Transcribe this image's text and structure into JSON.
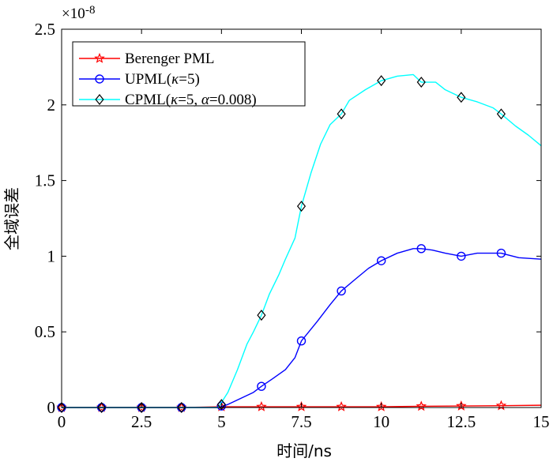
{
  "chart_data": {
    "type": "line",
    "title": "",
    "xlabel": "时间/ns",
    "ylabel": "全域误差",
    "x_multiplier_label": "×10",
    "y_exponent_label": "-8",
    "xlim": [
      0,
      15
    ],
    "ylim": [
      0,
      2.5
    ],
    "xticks": [
      0,
      2.5,
      5,
      7.5,
      10,
      12.5,
      15
    ],
    "xtick_labels": [
      "0",
      "2.5",
      "5",
      "7.5",
      "10",
      "12.5",
      "15"
    ],
    "yticks": [
      0,
      0.5,
      1,
      1.5,
      2,
      2.5
    ],
    "ytick_labels": [
      "0",
      "0.5",
      "1",
      "1.5",
      "2",
      "2.5"
    ],
    "legend_position": "top-left",
    "series": [
      {
        "name": "Berenger PML",
        "legend_parts": [
          {
            "t": "Berenger PML",
            "i": false
          }
        ],
        "color": "#ff0000",
        "marker": "star",
        "x": [
          0,
          1.25,
          2.5,
          3.75,
          5,
          6.25,
          7.5,
          8.75,
          10,
          11.25,
          12.5,
          13.75,
          15
        ],
        "y": [
          0,
          0,
          0,
          0,
          0.005,
          0.005,
          0.005,
          0.005,
          0.005,
          0.008,
          0.01,
          0.012,
          0.015
        ],
        "marker_x": [
          0,
          1.25,
          2.5,
          3.75,
          5,
          6.25,
          7.5,
          8.75,
          10,
          11.25,
          12.5,
          13.75
        ],
        "marker_y": [
          0,
          0,
          0,
          0,
          0.005,
          0.005,
          0.005,
          0.005,
          0.005,
          0.008,
          0.01,
          0.012
        ]
      },
      {
        "name": "UPML(κ=5)",
        "legend_parts": [
          {
            "t": "UPML(",
            "i": false
          },
          {
            "t": "κ",
            "i": true
          },
          {
            "t": "=5)",
            "i": false
          }
        ],
        "color": "#0000ff",
        "marker": "circle",
        "x": [
          0,
          4.9,
          5.2,
          5.6,
          6.0,
          6.25,
          6.6,
          7.0,
          7.3,
          7.5,
          8.0,
          8.4,
          8.75,
          9.2,
          9.6,
          10.0,
          10.5,
          11.0,
          11.25,
          11.6,
          12.0,
          12.5,
          13.0,
          13.75,
          14.3,
          15.0
        ],
        "y": [
          0,
          0,
          0.02,
          0.06,
          0.1,
          0.14,
          0.19,
          0.25,
          0.33,
          0.44,
          0.57,
          0.68,
          0.77,
          0.85,
          0.92,
          0.97,
          1.02,
          1.05,
          1.05,
          1.04,
          1.02,
          1.0,
          1.02,
          1.02,
          0.99,
          0.98
        ],
        "marker_x": [
          0,
          1.25,
          2.5,
          3.75,
          5,
          6.25,
          7.5,
          8.75,
          10,
          11.25,
          12.5,
          13.75
        ],
        "marker_y": [
          0,
          0,
          0,
          0,
          0.01,
          0.14,
          0.44,
          0.77,
          0.97,
          1.05,
          1.0,
          1.02
        ]
      },
      {
        "name": "CPML(κ=5, α=0.008)",
        "legend_parts": [
          {
            "t": "CPML(",
            "i": false
          },
          {
            "t": "κ",
            "i": true
          },
          {
            "t": "=5, ",
            "i": false
          },
          {
            "t": "α",
            "i": true
          },
          {
            "t": "=0.008)",
            "i": false
          }
        ],
        "color": "#00ffff",
        "marker": "diamond",
        "x": [
          0,
          4.9,
          5.2,
          5.5,
          5.8,
          6.0,
          6.25,
          6.5,
          6.8,
          7.0,
          7.3,
          7.5,
          7.8,
          8.1,
          8.4,
          8.75,
          9.0,
          9.5,
          10.0,
          10.5,
          11.0,
          11.25,
          11.7,
          12.0,
          12.5,
          13.0,
          13.5,
          13.75,
          14.2,
          14.6,
          15.0
        ],
        "y": [
          0,
          0,
          0.1,
          0.25,
          0.42,
          0.5,
          0.61,
          0.75,
          0.88,
          0.98,
          1.12,
          1.33,
          1.55,
          1.74,
          1.87,
          1.94,
          2.03,
          2.1,
          2.16,
          2.19,
          2.2,
          2.15,
          2.15,
          2.1,
          2.05,
          2.02,
          1.98,
          1.94,
          1.86,
          1.8,
          1.73
        ],
        "marker_x": [
          0,
          1.25,
          2.5,
          3.75,
          5,
          6.25,
          7.5,
          8.75,
          10,
          11.25,
          12.5,
          13.75
        ],
        "marker_y": [
          0,
          0,
          0,
          0,
          0.02,
          0.61,
          1.33,
          1.94,
          2.16,
          2.15,
          2.05,
          1.94
        ]
      }
    ]
  }
}
